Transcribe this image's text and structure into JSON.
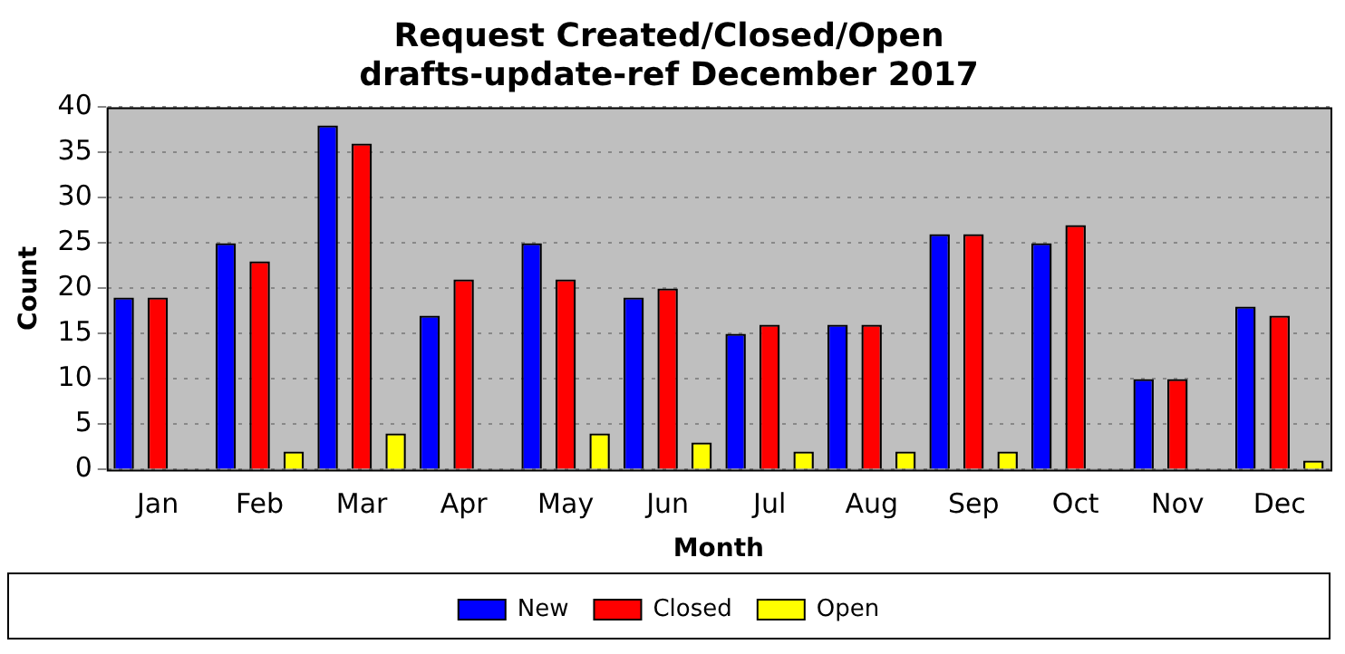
{
  "chart_data": {
    "type": "bar",
    "title": "Request Created/Closed/Open",
    "subtitle": "drafts-update-ref December 2017",
    "xlabel": "Month",
    "ylabel": "Count",
    "categories": [
      "Jan",
      "Feb",
      "Mar",
      "Apr",
      "May",
      "Jun",
      "Jul",
      "Aug",
      "Sep",
      "Oct",
      "Nov",
      "Dec"
    ],
    "series": [
      {
        "name": "New",
        "color": "#0000ff",
        "values": [
          19,
          25,
          38,
          17,
          25,
          19,
          15,
          16,
          26,
          25,
          10,
          18
        ]
      },
      {
        "name": "Closed",
        "color": "#ff0000",
        "values": [
          19,
          23,
          36,
          21,
          21,
          20,
          16,
          16,
          26,
          27,
          10,
          17
        ]
      },
      {
        "name": "Open",
        "color": "#ffff00",
        "values": [
          0,
          2,
          4,
          0,
          4,
          3,
          2,
          2,
          2,
          0,
          0,
          1
        ]
      }
    ],
    "ylim": [
      0,
      40
    ],
    "yticks": [
      0,
      5,
      10,
      15,
      20,
      25,
      30,
      35,
      40
    ],
    "grid": "y",
    "legend": "bottom"
  }
}
